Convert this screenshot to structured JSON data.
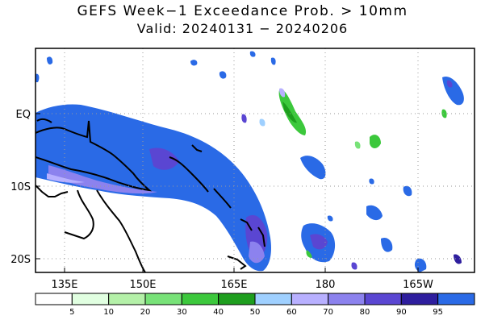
{
  "title": "GEFS Week−1 Exceedance Prob. > 10mm",
  "subtitle": "Valid: 20240131 − 20240206",
  "axes": {
    "lat_labels": [
      "EQ",
      "10S",
      "20S"
    ],
    "lon_labels": [
      "135E",
      "150E",
      "165E",
      "180",
      "165W"
    ]
  },
  "colorbar": {
    "labels": [
      "5",
      "10",
      "20",
      "30",
      "40",
      "50",
      "60",
      "70",
      "80",
      "90",
      "95"
    ],
    "colors": [
      "#ffffff",
      "#e1ffe1",
      "#b4f0a8",
      "#78e278",
      "#3cc83c",
      "#1e9e1e",
      "#9fd0ff",
      "#b8b0ff",
      "#8c82ee",
      "#5a46d2",
      "#2e1e9e",
      "#2a6ae6"
    ]
  },
  "palette": {
    "blue95": "#2a6ae6",
    "blue90": "#2e1e9e",
    "purple80": "#5a46d2",
    "purple70": "#8c82ee",
    "lav60": "#b8b0ff",
    "sky50": "#9fd0ff",
    "green40": "#1e9e1e",
    "green30": "#3cc83c"
  }
}
